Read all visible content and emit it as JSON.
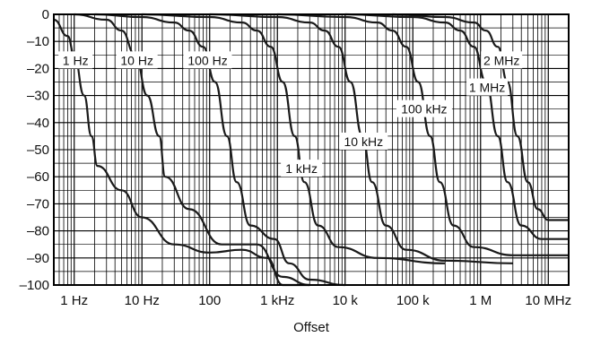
{
  "chart_data": {
    "type": "line",
    "title": "",
    "xlabel": "Offset",
    "ylabel": "",
    "x_scale": "log",
    "xlim": [
      0.5,
      20000000
    ],
    "ylim": [
      -100,
      0
    ],
    "grid": true,
    "legend": "none",
    "x_ticks": [
      {
        "value": 1,
        "label": "1 Hz"
      },
      {
        "value": 10,
        "label": "10 Hz"
      },
      {
        "value": 100,
        "label": "100"
      },
      {
        "value": 1000,
        "label": "1 kHz"
      },
      {
        "value": 10000,
        "label": "10 k"
      },
      {
        "value": 100000,
        "label": "100 k"
      },
      {
        "value": 1000000,
        "label": "1 M"
      },
      {
        "value": 10000000,
        "label": "10 MHz"
      }
    ],
    "y_ticks": [
      {
        "value": 0,
        "label": "0"
      },
      {
        "value": -10,
        "label": "–10"
      },
      {
        "value": -20,
        "label": "–20"
      },
      {
        "value": -30,
        "label": "–30"
      },
      {
        "value": -40,
        "label": "–40"
      },
      {
        "value": -50,
        "label": "–50"
      },
      {
        "value": -60,
        "label": "–60"
      },
      {
        "value": -70,
        "label": "–70"
      },
      {
        "value": -80,
        "label": "–80"
      },
      {
        "value": -90,
        "label": "–90"
      },
      {
        "value": -100,
        "label": "–100"
      }
    ],
    "series": [
      {
        "name": "1 Hz",
        "x": [
          0.5,
          0.8,
          1,
          1.4,
          1.8,
          2.2,
          5,
          10,
          30,
          100,
          300,
          700,
          1200,
          3000
        ],
        "y": [
          -2,
          -8,
          -15,
          -30,
          -45,
          -56,
          -65,
          -75,
          -85,
          -88,
          -87,
          -90,
          -100,
          -100
        ]
      },
      {
        "name": "10 Hz",
        "x": [
          1,
          3,
          5,
          8,
          12,
          18,
          22,
          50,
          150,
          500,
          1200,
          3000
        ],
        "y": [
          0,
          -2,
          -6,
          -15,
          -30,
          -45,
          -60,
          -72,
          -85,
          -85,
          -97,
          -100
        ]
      },
      {
        "name": "100 Hz",
        "x": [
          2,
          10,
          30,
          50,
          80,
          120,
          180,
          250,
          400,
          900,
          1500,
          3000,
          10000
        ],
        "y": [
          0,
          -1,
          -3,
          -6,
          -12,
          -25,
          -45,
          -62,
          -78,
          -83,
          -92,
          -98,
          -100
        ]
      },
      {
        "name": "1 kHz",
        "x": [
          10,
          100,
          300,
          500,
          800,
          1200,
          1800,
          2500,
          4000,
          8000,
          30000,
          300000
        ],
        "y": [
          0,
          -1,
          -3,
          -6,
          -12,
          -25,
          -45,
          -62,
          -78,
          -86,
          -90,
          -92
        ]
      },
      {
        "name": "10 kHz",
        "x": [
          100,
          1000,
          3000,
          5000,
          8000,
          12000,
          18000,
          25000,
          40000,
          80000,
          300000,
          3000000
        ],
        "y": [
          0,
          -1,
          -3,
          -6,
          -12,
          -25,
          -45,
          -62,
          -78,
          -87,
          -91,
          -92
        ]
      },
      {
        "name": "100 kHz",
        "x": [
          1000,
          10000,
          30000,
          50000,
          80000,
          120000,
          180000,
          250000,
          400000,
          800000,
          3000000,
          20000000
        ],
        "y": [
          0,
          -1,
          -3,
          -6,
          -12,
          -25,
          -45,
          -62,
          -78,
          -86,
          -89,
          -89
        ]
      },
      {
        "name": "1 MHz",
        "x": [
          10000,
          100000,
          300000,
          500000,
          800000,
          1200000,
          1800000,
          2500000,
          4000000,
          8000000,
          20000000
        ],
        "y": [
          0,
          -1,
          -3,
          -6,
          -12,
          -25,
          -45,
          -62,
          -78,
          -83,
          -83
        ]
      },
      {
        "name": "2 MHz",
        "x": [
          50000,
          300000,
          800000,
          1200000,
          1800000,
          2500000,
          3500000,
          5000000,
          7000000,
          10000000,
          20000000
        ],
        "y": [
          0,
          -1,
          -3,
          -6,
          -12,
          -25,
          -45,
          -62,
          -72,
          -76,
          -76
        ]
      }
    ]
  }
}
